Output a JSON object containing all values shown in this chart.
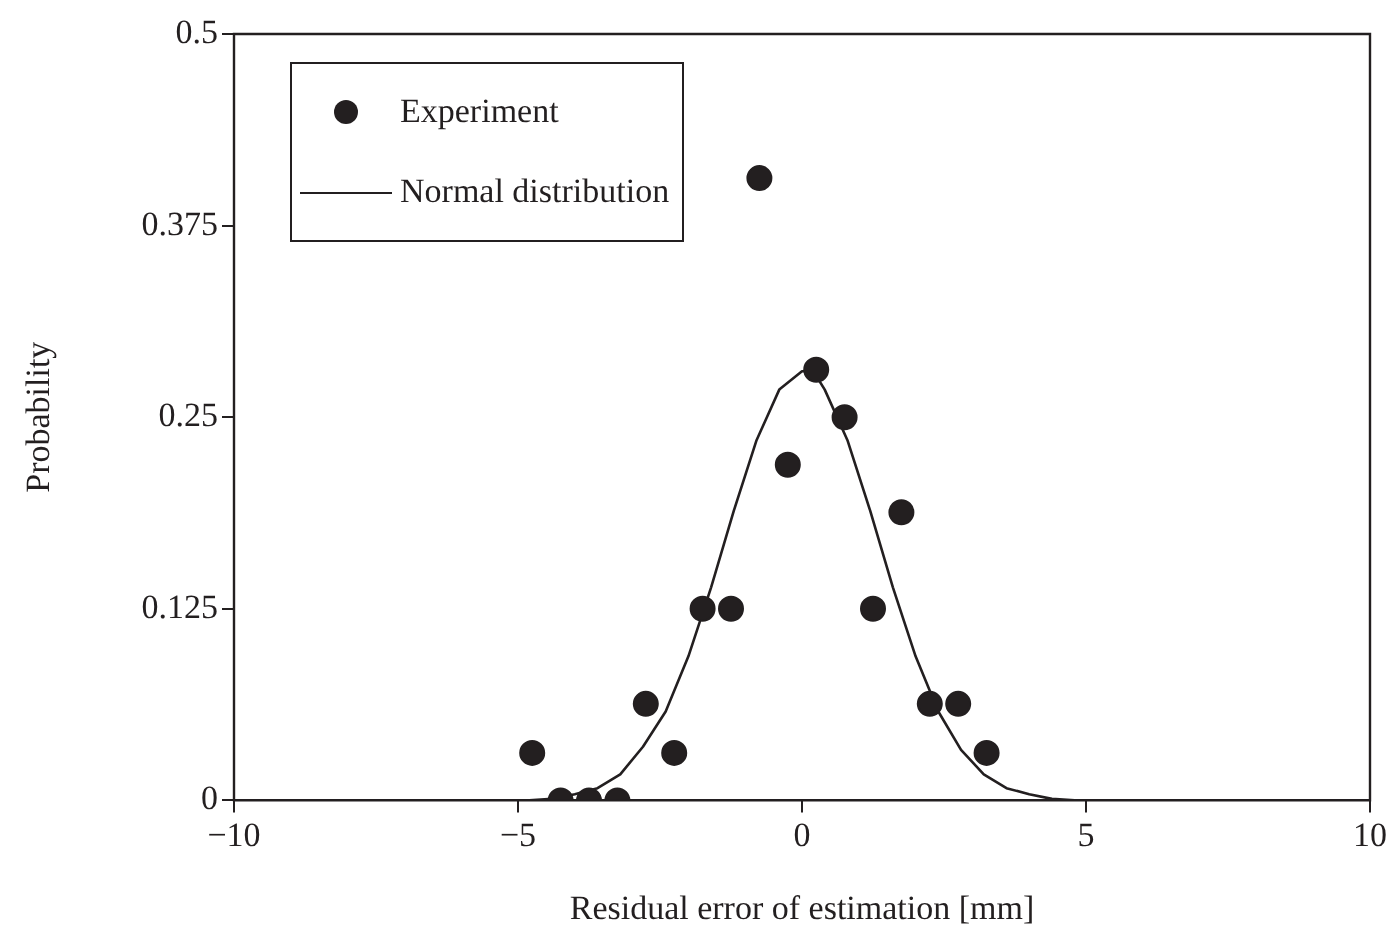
{
  "chart_data": {
    "type": "scatter",
    "xlabel": "Residual error of estimation [mm]",
    "ylabel": "Probability",
    "xlim": [
      -10,
      10
    ],
    "xticks": [
      {
        "value": -10,
        "label": "−10"
      },
      {
        "value": -5,
        "label": "−5"
      },
      0,
      5,
      10
    ],
    "ylim": [
      0,
      0.5
    ],
    "yticks": [
      0,
      0.125,
      0.25,
      0.375,
      0.5
    ],
    "grid": false,
    "legend": "top left",
    "series": [
      {
        "name": "Experiment",
        "marker": "circle",
        "color": "#231f20",
        "x": [
          -4.75,
          -4.25,
          -3.75,
          -3.25,
          -2.75,
          -2.25,
          -1.75,
          -1.25,
          -0.75,
          -0.25,
          0.25,
          0.75,
          1.25,
          1.75,
          2.25,
          2.75,
          3.25
        ],
        "values": [
          0.031,
          0,
          0,
          0,
          0.063,
          0.031,
          0.125,
          0.125,
          0.406,
          0.219,
          0.281,
          0.25,
          0.125,
          0.188,
          0.063,
          0.063,
          0.031
        ]
      },
      {
        "name": "Normal distribution",
        "type": "line",
        "marker": "none",
        "line_style": "solid",
        "color": "#231f20",
        "x": [
          -4.8,
          -4.4,
          -4.0,
          -3.6,
          -3.2,
          -2.8,
          -2.4,
          -2.0,
          -1.6,
          -1.2,
          -0.8,
          -0.4,
          0,
          0.2,
          0.4,
          0.8,
          1.2,
          1.6,
          2.0,
          2.4,
          2.8,
          3.2,
          3.6,
          4.0,
          4.4,
          4.8
        ],
        "values": [
          0,
          0.001,
          0.004,
          0.008,
          0.017,
          0.035,
          0.058,
          0.094,
          0.139,
          0.189,
          0.235,
          0.268,
          0.28,
          0.28,
          0.268,
          0.235,
          0.189,
          0.139,
          0.094,
          0.058,
          0.033,
          0.017,
          0.008,
          0.004,
          0.001,
          0
        ]
      }
    ]
  }
}
